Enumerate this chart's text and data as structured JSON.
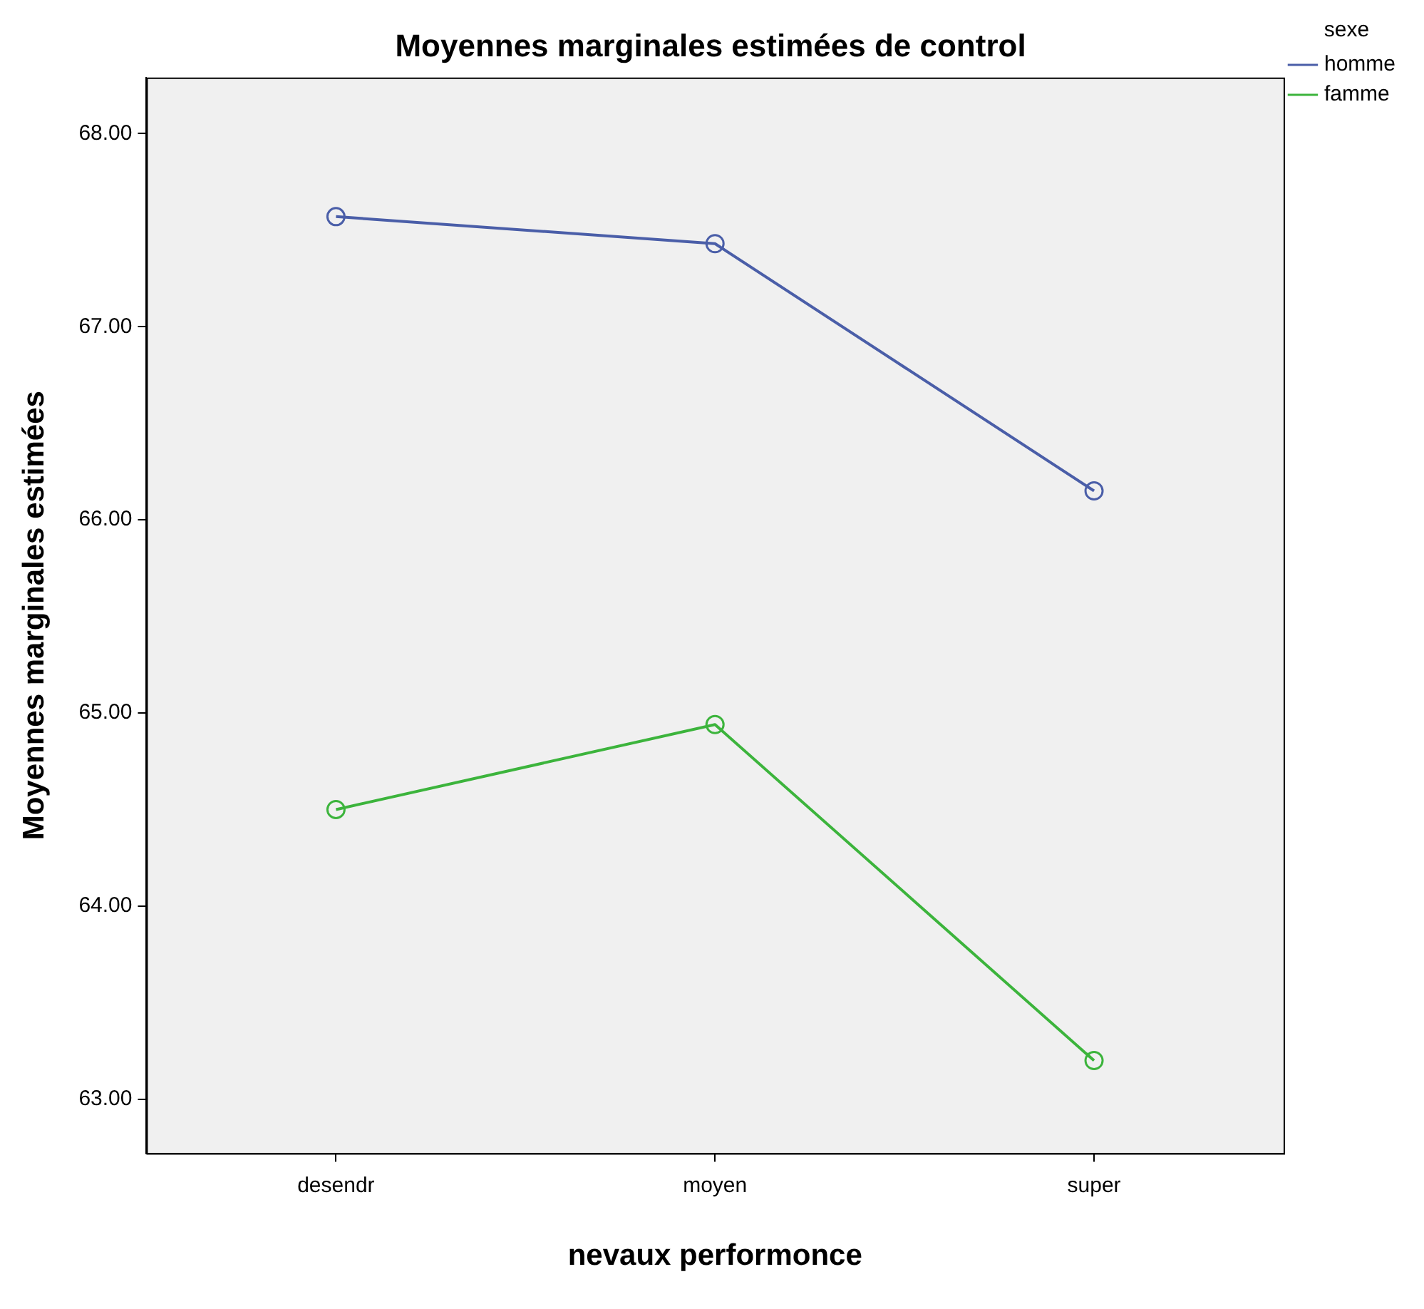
{
  "chart_data": {
    "type": "line",
    "title": "Moyennes marginales estimées de control",
    "xlabel": "nevaux performonce",
    "ylabel": "Moyennes marginales estimées",
    "legend_title": "sexe",
    "categories": [
      "desendr",
      "moyen",
      "super"
    ],
    "series": [
      {
        "name": "homme",
        "color": "#4a5ea8",
        "values": [
          67.57,
          67.43,
          66.15
        ]
      },
      {
        "name": "famme",
        "color": "#3cb43c",
        "values": [
          64.5,
          64.94,
          63.2
        ]
      }
    ],
    "ylim": [
      62.72,
      68.29
    ],
    "yticks": [
      {
        "value": 63,
        "label": "63.00"
      },
      {
        "value": 64,
        "label": "64.00"
      },
      {
        "value": 65,
        "label": "65.00"
      },
      {
        "value": 66,
        "label": "66.00"
      },
      {
        "value": 67,
        "label": "67.00"
      },
      {
        "value": 68,
        "label": "68.00"
      }
    ],
    "grid": false,
    "legend": "top right",
    "marker": "circle",
    "line_style": "solid"
  }
}
